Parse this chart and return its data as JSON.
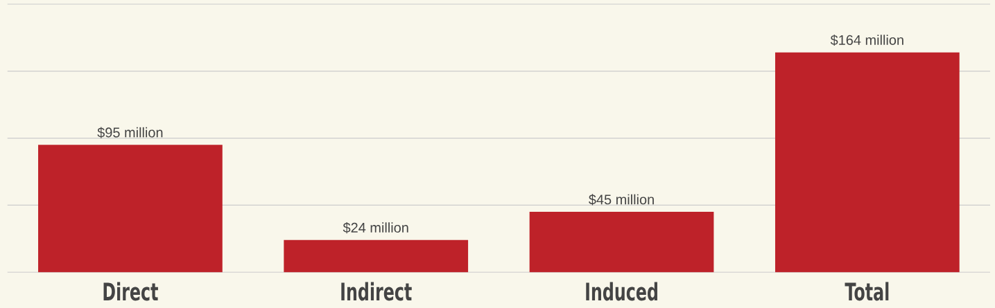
{
  "chart_data": {
    "type": "bar",
    "categories": [
      "Direct",
      "Indirect",
      "Induced",
      "Total"
    ],
    "values": [
      95,
      24,
      45,
      164
    ],
    "value_labels": [
      "$95 million",
      "$24 million",
      "$45 million",
      "$164 million"
    ],
    "color": "#be2229",
    "ylim": [
      0,
      200
    ],
    "yticks": [
      {
        "value": 0,
        "label": null
      },
      {
        "value": 50,
        "label": null
      },
      {
        "value": 100,
        "label": null
      },
      {
        "value": 150,
        "label": null
      },
      {
        "value": 200,
        "label": null
      }
    ],
    "grid": "y",
    "tick_labels": "x"
  }
}
